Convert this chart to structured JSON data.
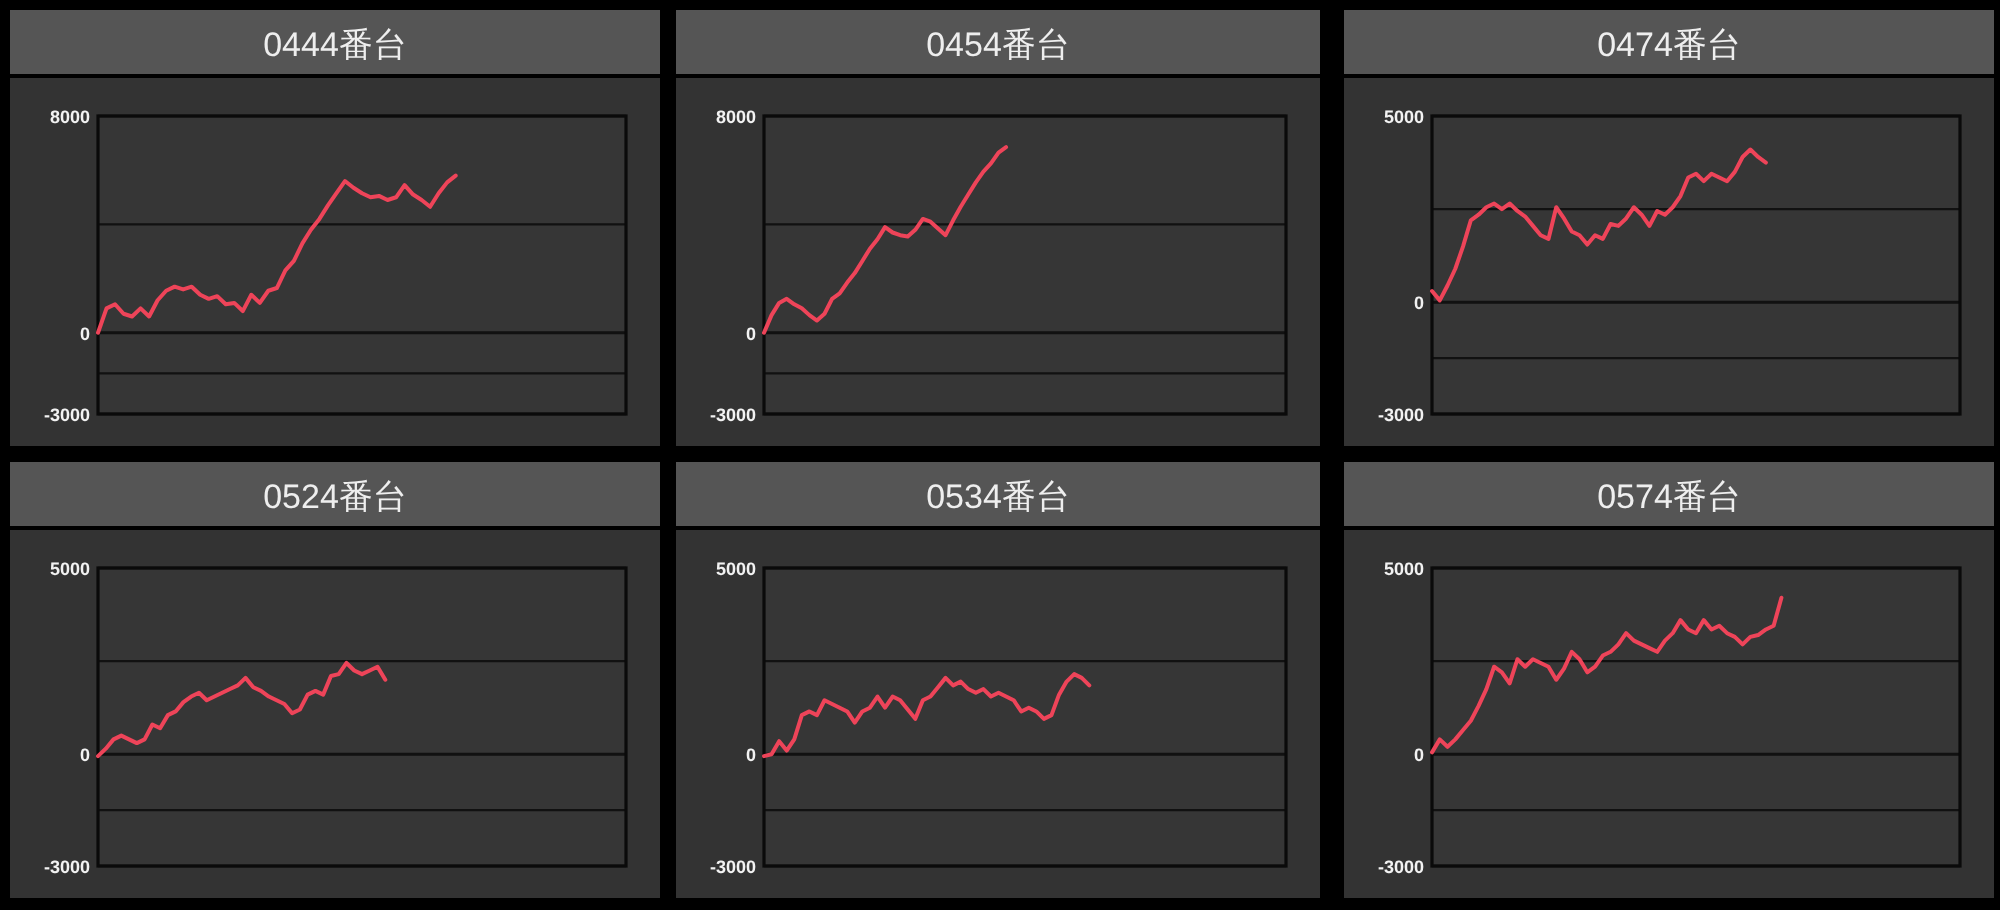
{
  "chart_data": [
    {
      "type": "line",
      "title": "0444番台",
      "color": "#ee4459",
      "grid": "y",
      "ylim": [
        -3000,
        8000
      ],
      "yticks": [
        -3000,
        {
          "value": -1500,
          "label": null
        },
        0,
        {
          "value": 4000,
          "label": null
        },
        8000
      ],
      "categories": [
        null,
        null,
        null,
        null,
        null,
        null,
        null,
        null,
        null,
        null,
        null,
        null,
        null,
        null,
        null,
        null,
        null,
        null,
        null,
        null,
        null,
        null,
        null,
        null,
        null,
        null,
        null,
        null,
        null,
        null,
        null,
        null,
        null,
        null,
        null,
        null,
        null,
        null,
        null,
        null,
        null,
        null,
        null,
        null,
        null,
        null,
        null,
        null,
        null,
        null,
        null,
        null,
        null,
        null,
        null,
        null,
        null,
        null,
        null,
        null,
        null,
        null,
        null
      ],
      "values": [
        0,
        900,
        1050,
        700,
        600,
        900,
        600,
        1200,
        1550,
        1700,
        1600,
        1700,
        1400,
        1250,
        1350,
        1050,
        1100,
        800,
        1400,
        1100,
        1550,
        1650,
        2300,
        2650,
        3300,
        3800,
        4200,
        4700,
        5150,
        5600,
        5350,
        5150,
        5000,
        5050,
        4900,
        5000,
        5450,
        5100,
        4900,
        4650,
        5150,
        5550,
        5800,
        null,
        null,
        null,
        null,
        null,
        null,
        null,
        null,
        null,
        null,
        null,
        null,
        null,
        null,
        null,
        null,
        null,
        null,
        null,
        null
      ]
    },
    {
      "type": "line",
      "title": "0454番台",
      "color": "#ee4459",
      "grid": "y",
      "ylim": [
        -3000,
        8000
      ],
      "yticks": [
        -3000,
        {
          "value": -1500,
          "label": null
        },
        0,
        {
          "value": 4000,
          "label": null
        },
        8000
      ],
      "categories": [
        null,
        null,
        null,
        null,
        null,
        null,
        null,
        null,
        null,
        null,
        null,
        null,
        null,
        null,
        null,
        null,
        null,
        null,
        null,
        null,
        null,
        null,
        null,
        null,
        null,
        null,
        null,
        null,
        null,
        null,
        null,
        null,
        null,
        null,
        null,
        null,
        null,
        null,
        null,
        null,
        null,
        null,
        null,
        null,
        null,
        null,
        null,
        null,
        null,
        null,
        null,
        null,
        null,
        null,
        null,
        null,
        null,
        null,
        null,
        null,
        null,
        null,
        null,
        null,
        null,
        null,
        null,
        null,
        null,
        null
      ],
      "values": [
        0,
        650,
        1100,
        1250,
        1050,
        900,
        650,
        450,
        700,
        1250,
        1450,
        1850,
        2200,
        2650,
        3100,
        3450,
        3900,
        3700,
        3600,
        3550,
        3800,
        4200,
        4100,
        3850,
        3600,
        4150,
        4650,
        5100,
        5550,
        5950,
        6250,
        6650,
        6850,
        null,
        null,
        null,
        null,
        null,
        null,
        null,
        null,
        null,
        null,
        null,
        null,
        null,
        null,
        null,
        null,
        null,
        null,
        null,
        null,
        null,
        null,
        null,
        null,
        null,
        null,
        null,
        null,
        null,
        null,
        null,
        null,
        null,
        null,
        null,
        null,
        null
      ]
    },
    {
      "type": "line",
      "title": "0474番台",
      "color": "#ee4459",
      "grid": "y",
      "ylim": [
        -3000,
        5000
      ],
      "yticks": [
        -3000,
        {
          "value": -1500,
          "label": null
        },
        0,
        {
          "value": 2500,
          "label": null
        },
        5000
      ],
      "categories": [
        null,
        null,
        null,
        null,
        null,
        null,
        null,
        null,
        null,
        null,
        null,
        null,
        null,
        null,
        null,
        null,
        null,
        null,
        null,
        null,
        null,
        null,
        null,
        null,
        null,
        null,
        null,
        null,
        null,
        null,
        null,
        null,
        null,
        null,
        null,
        null,
        null,
        null,
        null,
        null,
        null,
        null,
        null,
        null,
        null,
        null,
        null,
        null,
        null,
        null,
        null,
        null,
        null,
        null,
        null,
        null,
        null,
        null,
        null,
        null,
        null,
        null,
        null,
        null,
        null,
        null,
        null,
        null,
        null
      ],
      "values": [
        300,
        50,
        450,
        900,
        1500,
        2200,
        2350,
        2550,
        2650,
        2500,
        2650,
        2450,
        2300,
        2050,
        1800,
        1700,
        2550,
        2250,
        1900,
        1800,
        1550,
        1800,
        1700,
        2100,
        2050,
        2250,
        2550,
        2350,
        2050,
        2450,
        2350,
        2550,
        2850,
        3350,
        3450,
        3250,
        3450,
        3350,
        3250,
        3500,
        3900,
        4100,
        3900,
        3750,
        null,
        null,
        null,
        null,
        null,
        null,
        null,
        null,
        null,
        null,
        null,
        null,
        null,
        null,
        null,
        null,
        null,
        null,
        null,
        null,
        null,
        null,
        null,
        null,
        null
      ]
    },
    {
      "type": "line",
      "title": "0524番台",
      "color": "#ee4459",
      "grid": "y",
      "ylim": [
        -3000,
        5000
      ],
      "yticks": [
        -3000,
        {
          "value": -1500,
          "label": null
        },
        0,
        {
          "value": 2500,
          "label": null
        },
        5000
      ],
      "categories": [
        null,
        null,
        null,
        null,
        null,
        null,
        null,
        null,
        null,
        null,
        null,
        null,
        null,
        null,
        null,
        null,
        null,
        null,
        null,
        null,
        null,
        null,
        null,
        null,
        null,
        null,
        null,
        null,
        null,
        null,
        null,
        null,
        null,
        null,
        null,
        null,
        null,
        null,
        null,
        null,
        null,
        null,
        null,
        null,
        null,
        null,
        null,
        null,
        null,
        null,
        null,
        null,
        null,
        null,
        null,
        null,
        null,
        null,
        null,
        null,
        null,
        null,
        null,
        null,
        null,
        null,
        null,
        null,
        null
      ],
      "values": [
        -50,
        150,
        400,
        500,
        400,
        300,
        400,
        800,
        700,
        1050,
        1150,
        1400,
        1550,
        1650,
        1450,
        1550,
        1650,
        1750,
        1850,
        2050,
        1800,
        1700,
        1550,
        1450,
        1350,
        1100,
        1200,
        1600,
        1700,
        1600,
        2100,
        2150,
        2450,
        2250,
        2150,
        2250,
        2350,
        2000,
        null,
        null,
        null,
        null,
        null,
        null,
        null,
        null,
        null,
        null,
        null,
        null,
        null,
        null,
        null,
        null,
        null,
        null,
        null,
        null,
        null,
        null,
        null,
        null,
        null,
        null,
        null,
        null,
        null,
        null,
        null
      ]
    },
    {
      "type": "line",
      "title": "0534番台",
      "color": "#ee4459",
      "grid": "y",
      "ylim": [
        -3000,
        5000
      ],
      "yticks": [
        -3000,
        {
          "value": -1500,
          "label": null
        },
        0,
        {
          "value": 2500,
          "label": null
        },
        5000
      ],
      "categories": [
        null,
        null,
        null,
        null,
        null,
        null,
        null,
        null,
        null,
        null,
        null,
        null,
        null,
        null,
        null,
        null,
        null,
        null,
        null,
        null,
        null,
        null,
        null,
        null,
        null,
        null,
        null,
        null,
        null,
        null,
        null,
        null,
        null,
        null,
        null,
        null,
        null,
        null,
        null,
        null,
        null,
        null,
        null,
        null,
        null,
        null,
        null,
        null,
        null,
        null,
        null,
        null,
        null,
        null,
        null,
        null,
        null,
        null,
        null,
        null,
        null,
        null,
        null,
        null,
        null,
        null,
        null,
        null,
        null,
        null
      ],
      "values": [
        -50,
        0,
        350,
        100,
        400,
        1050,
        1150,
        1050,
        1450,
        1350,
        1250,
        1150,
        850,
        1150,
        1250,
        1550,
        1250,
        1550,
        1450,
        1200,
        950,
        1450,
        1550,
        1800,
        2050,
        1850,
        1950,
        1750,
        1650,
        1750,
        1550,
        1650,
        1550,
        1450,
        1150,
        1250,
        1150,
        950,
        1050,
        1600,
        1950,
        2150,
        2050,
        1850,
        null,
        null,
        null,
        null,
        null,
        null,
        null,
        null,
        null,
        null,
        null,
        null,
        null,
        null,
        null,
        null,
        null,
        null,
        null,
        null,
        null,
        null,
        null,
        null,
        null,
        null
      ]
    },
    {
      "type": "line",
      "title": "0574番台",
      "color": "#ee4459",
      "grid": "y",
      "ylim": [
        -3000,
        5000
      ],
      "yticks": [
        -3000,
        {
          "value": -1500,
          "label": null
        },
        0,
        {
          "value": 2500,
          "label": null
        },
        5000
      ],
      "categories": [
        null,
        null,
        null,
        null,
        null,
        null,
        null,
        null,
        null,
        null,
        null,
        null,
        null,
        null,
        null,
        null,
        null,
        null,
        null,
        null,
        null,
        null,
        null,
        null,
        null,
        null,
        null,
        null,
        null,
        null,
        null,
        null,
        null,
        null,
        null,
        null,
        null,
        null,
        null,
        null,
        null,
        null,
        null,
        null,
        null,
        null,
        null,
        null,
        null,
        null,
        null,
        null,
        null,
        null,
        null,
        null,
        null,
        null,
        null,
        null,
        null,
        null,
        null,
        null,
        null,
        null,
        null,
        null,
        null
      ],
      "values": [
        50,
        400,
        200,
        400,
        650,
        900,
        1300,
        1750,
        2350,
        2200,
        1900,
        2550,
        2350,
        2550,
        2450,
        2350,
        2000,
        2300,
        2750,
        2550,
        2200,
        2350,
        2650,
        2750,
        2950,
        3250,
        3050,
        2950,
        2850,
        2750,
        3050,
        3250,
        3600,
        3350,
        3250,
        3600,
        3350,
        3450,
        3250,
        3150,
        2950,
        3150,
        3200,
        3350,
        3450,
        4200,
        null,
        null,
        null,
        null,
        null,
        null,
        null,
        null,
        null,
        null,
        null,
        null,
        null,
        null,
        null,
        null,
        null,
        null,
        null,
        null,
        null,
        null,
        null
      ]
    }
  ]
}
